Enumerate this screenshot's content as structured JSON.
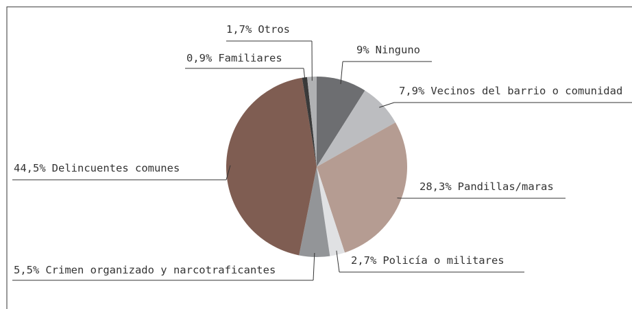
{
  "chart_data": {
    "type": "pie",
    "categories": [
      "Ninguno",
      "Vecinos del barrio o comunidad",
      "Pandillas/maras",
      "Policía o militares",
      "Crimen organizado y narcotraficantes",
      "Delincuentes comunes",
      "Familiares",
      "Otros"
    ],
    "values": [
      9,
      7.9,
      28.3,
      2.7,
      5.5,
      44.5,
      0.9,
      1.7
    ],
    "value_labels": [
      "9%",
      "7,9%",
      "28,3%",
      "2,7%",
      "5,5%",
      "44,5%",
      "0,9%",
      "1,7%"
    ],
    "colors": [
      "#6d6e71",
      "#bcbdc0",
      "#b59c92",
      "#e0e1e3",
      "#939598",
      "#7f5d52",
      "#3a3a3a",
      "#b0b1b3"
    ]
  }
}
